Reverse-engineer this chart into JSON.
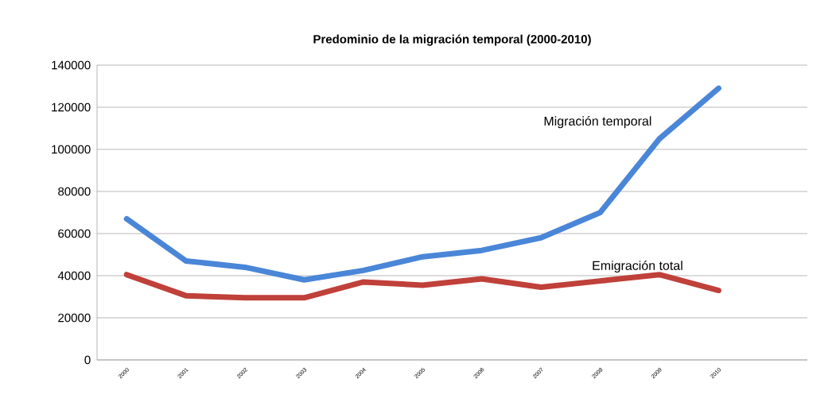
{
  "chart_data": {
    "type": "line",
    "title": "Predominio de la migración temporal (2000-2010)",
    "categories": [
      "2000",
      "2001",
      "2002",
      "2003",
      "2004",
      "2005",
      "2006",
      "2007",
      "2008",
      "2009",
      "2010"
    ],
    "series": [
      {
        "name": "Migración temporal",
        "color": "#4a86d8",
        "values": [
          67000,
          47000,
          44000,
          38000,
          42500,
          49000,
          52000,
          58000,
          70000,
          105000,
          129000
        ]
      },
      {
        "name": "Emigración total",
        "color": "#c0403a",
        "values": [
          40500,
          30500,
          29500,
          29500,
          37000,
          35500,
          38500,
          34500,
          37500,
          40500,
          33000
        ]
      }
    ],
    "ylim": [
      0,
      140000
    ],
    "yticks": [
      0,
      20000,
      40000,
      60000,
      80000,
      100000,
      120000,
      140000
    ],
    "grid": "y",
    "legend": false,
    "marker": "none",
    "line_style": "solid"
  }
}
